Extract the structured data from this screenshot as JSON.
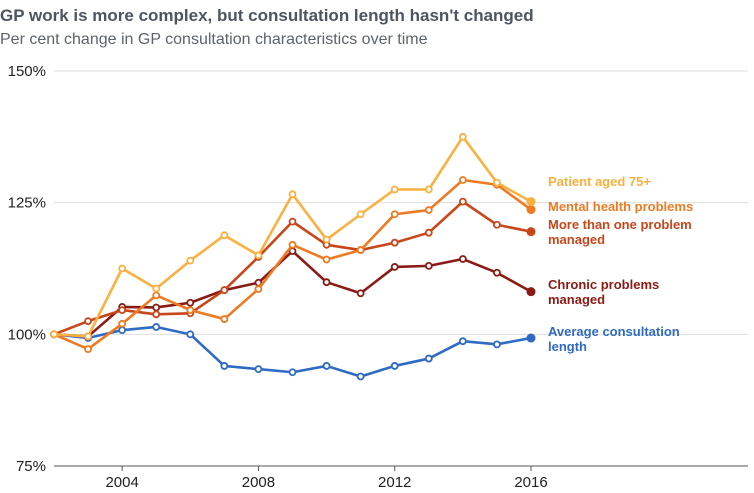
{
  "chart_data": {
    "type": "line",
    "title": "GP work is more complex, but consultation length hasn't changed",
    "subtitle": "Per cent change in GP consultation characteristics over time",
    "xlabel": "",
    "ylabel": "",
    "x": [
      2002,
      2003,
      2004,
      2005,
      2006,
      2007,
      2008,
      2009,
      2010,
      2011,
      2012,
      2013,
      2014,
      2015,
      2016
    ],
    "xlim": [
      2002,
      2022.5
    ],
    "ylim": [
      75,
      150
    ],
    "x_ticks": [
      2004,
      2008,
      2012,
      2016
    ],
    "x_tick_labels": [
      "2004",
      "2008",
      "2012",
      "2016"
    ],
    "y_ticks": [
      75,
      100,
      125,
      150
    ],
    "y_tick_labels": [
      "75%",
      "100%",
      "125%",
      "150%"
    ],
    "grid": "horizontal",
    "legend": "direct labels at line ends (right)",
    "series": [
      {
        "name": "Patient aged 75+",
        "label_lines": [
          "Patient aged 75+"
        ],
        "color": "#FBB040",
        "values": [
          100,
          99.6,
          112.5,
          108.7,
          114,
          118.8,
          115,
          126.6,
          118,
          122.8,
          127.5,
          127.5,
          137.5,
          128.8,
          125.2
        ]
      },
      {
        "name": "Mental health problems",
        "label_lines": [
          "Mental health problems"
        ],
        "color": "#EE7A22",
        "values": [
          100,
          97.2,
          102,
          107.4,
          104.6,
          102.9,
          108.6,
          117,
          114.2,
          116,
          122.8,
          123.6,
          129.3,
          128.4,
          123.7
        ]
      },
      {
        "name": "More than one problem managed",
        "label_lines": [
          "More than one problem",
          "managed"
        ],
        "color": "#C8461A",
        "values": [
          100,
          102.5,
          104.6,
          103.8,
          104,
          108.4,
          114.7,
          121.4,
          117,
          116,
          117.4,
          119.3,
          125.2,
          120.8,
          119.5
        ]
      },
      {
        "name": "Chronic problems managed",
        "label_lines": [
          "Chronic problems",
          "managed"
        ],
        "color": "#8B1A14",
        "values": [
          100,
          99.6,
          105.2,
          105.1,
          106,
          108.4,
          109.8,
          115.8,
          109.9,
          107.8,
          112.8,
          113,
          114.3,
          111.7,
          108.1
        ]
      },
      {
        "name": "Average consultation length",
        "label_lines": [
          "Average consultation",
          "length"
        ],
        "color": "#2F6BC4",
        "values": [
          100,
          99.3,
          100.8,
          101.4,
          100,
          94,
          93.4,
          92.8,
          94,
          92,
          94,
          95.4,
          98.7,
          98.1,
          99.3
        ]
      }
    ]
  }
}
